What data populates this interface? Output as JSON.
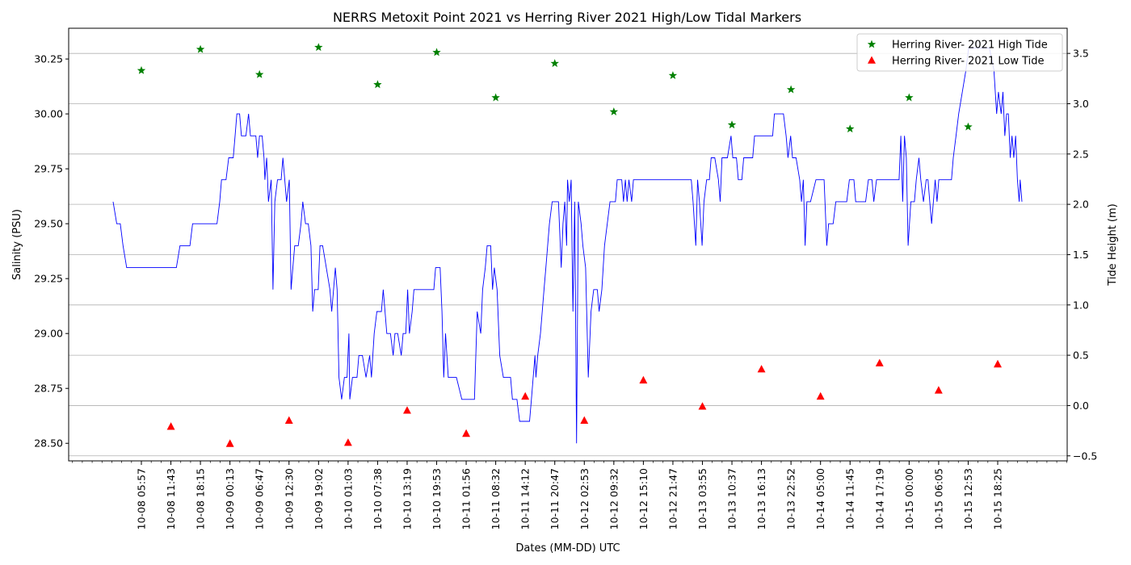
{
  "chart_data": {
    "type": "line",
    "title": "NERRS Metoxit Point 2021 vs Herring River 2021 High/Low Tidal Markers",
    "xlabel": "Dates (MM-DD) UTC",
    "ylabel_left": "Salinity (PSU)",
    "ylabel_right": "Tide Height (m)",
    "ylim_left": [
      28.42,
      30.39
    ],
    "ylim_right": [
      -0.55,
      3.75
    ],
    "yticks_left": [
      28.5,
      28.75,
      29.0,
      29.25,
      29.5,
      29.75,
      30.0,
      30.25
    ],
    "yticks_left_labels": [
      "28.50",
      "28.75",
      "29.00",
      "29.25",
      "29.50",
      "29.75",
      "30.00",
      "30.25"
    ],
    "yticks_right": [
      -0.5,
      0.0,
      0.5,
      1.0,
      1.5,
      2.0,
      2.5,
      3.0,
      3.5
    ],
    "yticks_right_labels": [
      "−0.5",
      "0.0",
      "0.5",
      "1.0",
      "1.5",
      "2.0",
      "2.5",
      "3.0",
      "3.5"
    ],
    "grid": "horizontal, right axis",
    "legend_position": "top-right",
    "xticks": [
      "10-08 05:57",
      "10-08 11:43",
      "10-08 18:15",
      "10-09 00:13",
      "10-09 06:47",
      "10-09 12:30",
      "10-09 19:02",
      "10-10 01:03",
      "10-10 07:38",
      "10-10 13:19",
      "10-10 19:53",
      "10-11 01:56",
      "10-11 08:32",
      "10-11 14:12",
      "10-11 20:47",
      "10-12 02:53",
      "10-12 09:32",
      "10-12 15:10",
      "10-12 21:47",
      "10-13 03:55",
      "10-13 10:37",
      "10-13 16:13",
      "10-13 22:52",
      "10-14 05:00",
      "10-14 11:45",
      "10-14 17:19",
      "10-15 00:00",
      "10-15 06:05",
      "10-15 12:53",
      "10-15 18:25"
    ],
    "series": [
      {
        "name": "Herring River- 2021 High Tide",
        "marker": "star",
        "color": "#008000",
        "axis": "right",
        "x": [
          "10-08 05:57",
          "10-08 18:15",
          "10-09 06:47",
          "10-09 19:02",
          "10-10 07:38",
          "10-10 19:53",
          "10-11 08:32",
          "10-11 20:47",
          "10-12 09:32",
          "10-12 21:47",
          "10-13 10:37",
          "10-13 22:52",
          "10-14 11:45",
          "10-15 00:00",
          "10-15 12:53"
        ],
        "values": [
          3.33,
          3.54,
          3.29,
          3.56,
          3.19,
          3.51,
          3.06,
          3.4,
          2.92,
          3.28,
          2.79,
          3.14,
          2.75,
          3.06,
          2.77
        ]
      },
      {
        "name": "Herring River- 2021 Low Tide",
        "marker": "triangle",
        "color": "#ff0000",
        "axis": "right",
        "x": [
          "10-08 11:43",
          "10-09 00:13",
          "10-09 12:30",
          "10-10 01:03",
          "10-10 13:19",
          "10-11 01:56",
          "10-11 14:12",
          "10-12 02:53",
          "10-12 15:10",
          "10-13 03:55",
          "10-13 16:13",
          "10-14 05:00",
          "10-14 17:19",
          "10-15 06:05",
          "10-15 18:25"
        ],
        "values": [
          -0.21,
          -0.38,
          -0.15,
          -0.37,
          -0.05,
          -0.28,
          0.09,
          -0.15,
          0.25,
          -0.01,
          0.36,
          0.09,
          0.42,
          0.15,
          0.41
        ]
      },
      {
        "name": "",
        "color": "#0000ff",
        "axis": "left",
        "x_range": [
          "10-08 05:57",
          "10-15 18:25"
        ],
        "comment": "",
        "points": [
          [
            0.0,
            29.6
          ],
          [
            0.004,
            29.5
          ],
          [
            0.008,
            29.5
          ],
          [
            0.011,
            29.4
          ],
          [
            0.015,
            29.3
          ],
          [
            0.03,
            29.3
          ],
          [
            0.045,
            29.3
          ],
          [
            0.06,
            29.3
          ],
          [
            0.07,
            29.3
          ],
          [
            0.074,
            29.4
          ],
          [
            0.085,
            29.4
          ],
          [
            0.088,
            29.5
          ],
          [
            0.1,
            29.5
          ],
          [
            0.115,
            29.5
          ],
          [
            0.118,
            29.6
          ],
          [
            0.12,
            29.7
          ],
          [
            0.125,
            29.7
          ],
          [
            0.128,
            29.8
          ],
          [
            0.133,
            29.8
          ],
          [
            0.135,
            29.9
          ],
          [
            0.137,
            30.0
          ],
          [
            0.14,
            30.0
          ],
          [
            0.142,
            29.9
          ],
          [
            0.147,
            29.9
          ],
          [
            0.15,
            30.0
          ],
          [
            0.152,
            29.9
          ],
          [
            0.158,
            29.9
          ],
          [
            0.16,
            29.8
          ],
          [
            0.162,
            29.9
          ],
          [
            0.165,
            29.9
          ],
          [
            0.167,
            29.8
          ],
          [
            0.168,
            29.7
          ],
          [
            0.17,
            29.8
          ],
          [
            0.172,
            29.6
          ],
          [
            0.175,
            29.7
          ],
          [
            0.177,
            29.2
          ],
          [
            0.179,
            29.6
          ],
          [
            0.182,
            29.7
          ],
          [
            0.186,
            29.7
          ],
          [
            0.188,
            29.8
          ],
          [
            0.19,
            29.7
          ],
          [
            0.192,
            29.6
          ],
          [
            0.195,
            29.7
          ],
          [
            0.197,
            29.2
          ],
          [
            0.199,
            29.3
          ],
          [
            0.201,
            29.4
          ],
          [
            0.205,
            29.4
          ],
          [
            0.208,
            29.5
          ],
          [
            0.21,
            29.6
          ],
          [
            0.213,
            29.5
          ],
          [
            0.216,
            29.5
          ],
          [
            0.219,
            29.4
          ],
          [
            0.221,
            29.1
          ],
          [
            0.223,
            29.2
          ],
          [
            0.227,
            29.2
          ],
          [
            0.229,
            29.4
          ],
          [
            0.232,
            29.4
          ],
          [
            0.236,
            29.3
          ],
          [
            0.24,
            29.2
          ],
          [
            0.242,
            29.1
          ],
          [
            0.244,
            29.2
          ],
          [
            0.246,
            29.3
          ],
          [
            0.248,
            29.2
          ],
          [
            0.25,
            28.8
          ],
          [
            0.253,
            28.7
          ],
          [
            0.256,
            28.8
          ],
          [
            0.259,
            28.8
          ],
          [
            0.261,
            29.0
          ],
          [
            0.262,
            28.7
          ],
          [
            0.265,
            28.8
          ],
          [
            0.27,
            28.8
          ],
          [
            0.272,
            28.9
          ],
          [
            0.276,
            28.9
          ],
          [
            0.28,
            28.8
          ],
          [
            0.284,
            28.9
          ],
          [
            0.286,
            28.8
          ],
          [
            0.289,
            29.0
          ],
          [
            0.292,
            29.1
          ],
          [
            0.297,
            29.1
          ],
          [
            0.299,
            29.2
          ],
          [
            0.301,
            29.1
          ],
          [
            0.303,
            29.0
          ],
          [
            0.307,
            29.0
          ],
          [
            0.31,
            28.9
          ],
          [
            0.312,
            29.0
          ],
          [
            0.315,
            29.0
          ],
          [
            0.319,
            28.9
          ],
          [
            0.321,
            29.0
          ],
          [
            0.324,
            29.0
          ],
          [
            0.326,
            29.2
          ],
          [
            0.328,
            29.0
          ],
          [
            0.331,
            29.1
          ],
          [
            0.333,
            29.2
          ],
          [
            0.34,
            29.2
          ],
          [
            0.35,
            29.2
          ],
          [
            0.355,
            29.2
          ],
          [
            0.357,
            29.3
          ],
          [
            0.362,
            29.3
          ],
          [
            0.364,
            29.1
          ],
          [
            0.366,
            28.8
          ],
          [
            0.368,
            29.0
          ],
          [
            0.371,
            28.8
          ],
          [
            0.38,
            28.8
          ],
          [
            0.386,
            28.7
          ],
          [
            0.4,
            28.7
          ],
          [
            0.403,
            29.1
          ],
          [
            0.407,
            29.0
          ],
          [
            0.409,
            29.2
          ],
          [
            0.412,
            29.3
          ],
          [
            0.414,
            29.4
          ],
          [
            0.418,
            29.4
          ],
          [
            0.42,
            29.2
          ],
          [
            0.422,
            29.3
          ],
          [
            0.425,
            29.2
          ],
          [
            0.428,
            28.9
          ],
          [
            0.432,
            28.8
          ],
          [
            0.44,
            28.8
          ],
          [
            0.442,
            28.7
          ],
          [
            0.447,
            28.7
          ],
          [
            0.45,
            28.6
          ],
          [
            0.461,
            28.6
          ],
          [
            0.463,
            28.7
          ],
          [
            0.465,
            28.8
          ],
          [
            0.467,
            28.9
          ],
          [
            0.468,
            28.8
          ],
          [
            0.47,
            28.9
          ],
          [
            0.473,
            29.0
          ],
          [
            0.477,
            29.2
          ],
          [
            0.479,
            29.3
          ],
          [
            0.481,
            29.4
          ],
          [
            0.483,
            29.5
          ],
          [
            0.486,
            29.6
          ],
          [
            0.493,
            29.6
          ],
          [
            0.496,
            29.3
          ],
          [
            0.498,
            29.5
          ],
          [
            0.5,
            29.6
          ],
          [
            0.502,
            29.4
          ],
          [
            0.503,
            29.7
          ],
          [
            0.505,
            29.6
          ],
          [
            0.507,
            29.7
          ],
          [
            0.509,
            29.1
          ],
          [
            0.511,
            29.6
          ],
          [
            0.513,
            28.5
          ],
          [
            0.515,
            29.6
          ],
          [
            0.518,
            29.5
          ],
          [
            0.52,
            29.4
          ],
          [
            0.523,
            29.3
          ],
          [
            0.526,
            28.8
          ],
          [
            0.529,
            29.1
          ],
          [
            0.532,
            29.2
          ],
          [
            0.536,
            29.2
          ],
          [
            0.538,
            29.1
          ],
          [
            0.541,
            29.2
          ],
          [
            0.544,
            29.4
          ],
          [
            0.547,
            29.5
          ],
          [
            0.55,
            29.6
          ],
          [
            0.556,
            29.6
          ],
          [
            0.558,
            29.7
          ],
          [
            0.563,
            29.7
          ],
          [
            0.565,
            29.6
          ],
          [
            0.567,
            29.7
          ],
          [
            0.569,
            29.6
          ],
          [
            0.571,
            29.7
          ],
          [
            0.574,
            29.6
          ],
          [
            0.576,
            29.7
          ],
          [
            0.59,
            29.7
          ],
          [
            0.61,
            29.7
          ],
          [
            0.63,
            29.7
          ],
          [
            0.64,
            29.7
          ],
          [
            0.642,
            29.6
          ],
          [
            0.645,
            29.4
          ],
          [
            0.647,
            29.7
          ],
          [
            0.649,
            29.6
          ],
          [
            0.652,
            29.4
          ],
          [
            0.654,
            29.6
          ],
          [
            0.657,
            29.7
          ],
          [
            0.66,
            29.7
          ],
          [
            0.662,
            29.8
          ],
          [
            0.666,
            29.8
          ],
          [
            0.67,
            29.7
          ],
          [
            0.672,
            29.6
          ],
          [
            0.674,
            29.8
          ],
          [
            0.68,
            29.8
          ],
          [
            0.684,
            29.9
          ],
          [
            0.686,
            29.8
          ],
          [
            0.69,
            29.8
          ],
          [
            0.692,
            29.7
          ],
          [
            0.696,
            29.7
          ],
          [
            0.698,
            29.8
          ],
          [
            0.708,
            29.8
          ],
          [
            0.71,
            29.9
          ],
          [
            0.72,
            29.9
          ],
          [
            0.73,
            29.9
          ],
          [
            0.732,
            30.0
          ],
          [
            0.742,
            30.0
          ],
          [
            0.745,
            29.9
          ],
          [
            0.747,
            29.8
          ],
          [
            0.75,
            29.9
          ],
          [
            0.752,
            29.8
          ],
          [
            0.756,
            29.8
          ],
          [
            0.76,
            29.7
          ],
          [
            0.762,
            29.6
          ],
          [
            0.764,
            29.7
          ],
          [
            0.766,
            29.4
          ],
          [
            0.768,
            29.6
          ],
          [
            0.772,
            29.6
          ],
          [
            0.778,
            29.7
          ],
          [
            0.787,
            29.7
          ],
          [
            0.79,
            29.4
          ],
          [
            0.792,
            29.5
          ],
          [
            0.797,
            29.5
          ],
          [
            0.8,
            29.6
          ],
          [
            0.812,
            29.6
          ],
          [
            0.815,
            29.7
          ],
          [
            0.82,
            29.7
          ],
          [
            0.822,
            29.6
          ],
          [
            0.833,
            29.6
          ],
          [
            0.836,
            29.7
          ],
          [
            0.84,
            29.7
          ],
          [
            0.842,
            29.6
          ],
          [
            0.845,
            29.7
          ],
          [
            0.87,
            29.7
          ],
          [
            0.872,
            29.9
          ],
          [
            0.874,
            29.6
          ],
          [
            0.876,
            29.9
          ],
          [
            0.878,
            29.8
          ],
          [
            0.88,
            29.4
          ],
          [
            0.883,
            29.6
          ],
          [
            0.887,
            29.6
          ],
          [
            0.889,
            29.7
          ],
          [
            0.892,
            29.8
          ],
          [
            0.894,
            29.7
          ],
          [
            0.897,
            29.6
          ],
          [
            0.9,
            29.7
          ],
          [
            0.902,
            29.7
          ],
          [
            0.904,
            29.6
          ],
          [
            0.906,
            29.5
          ],
          [
            0.908,
            29.6
          ],
          [
            0.91,
            29.7
          ],
          [
            0.912,
            29.6
          ],
          [
            0.914,
            29.7
          ],
          [
            0.928,
            29.7
          ],
          [
            0.93,
            29.8
          ],
          [
            0.933,
            29.9
          ],
          [
            0.936,
            30.0
          ],
          [
            0.94,
            30.1
          ],
          [
            0.944,
            30.2
          ],
          [
            0.947,
            30.3
          ],
          [
            0.97,
            30.3
          ],
          [
            0.975,
            30.2
          ],
          [
            0.978,
            30.0
          ],
          [
            0.98,
            30.1
          ],
          [
            0.983,
            30.0
          ],
          [
            0.985,
            30.1
          ],
          [
            0.987,
            29.9
          ],
          [
            0.989,
            30.0
          ],
          [
            0.991,
            30.0
          ],
          [
            0.993,
            29.8
          ],
          [
            0.995,
            29.9
          ],
          [
            0.997,
            29.8
          ],
          [
            0.999,
            29.9
          ],
          [
            1.001,
            29.7
          ],
          [
            1.003,
            29.6
          ],
          [
            1.004,
            29.7
          ],
          [
            1.006,
            29.6
          ]
        ]
      }
    ]
  }
}
